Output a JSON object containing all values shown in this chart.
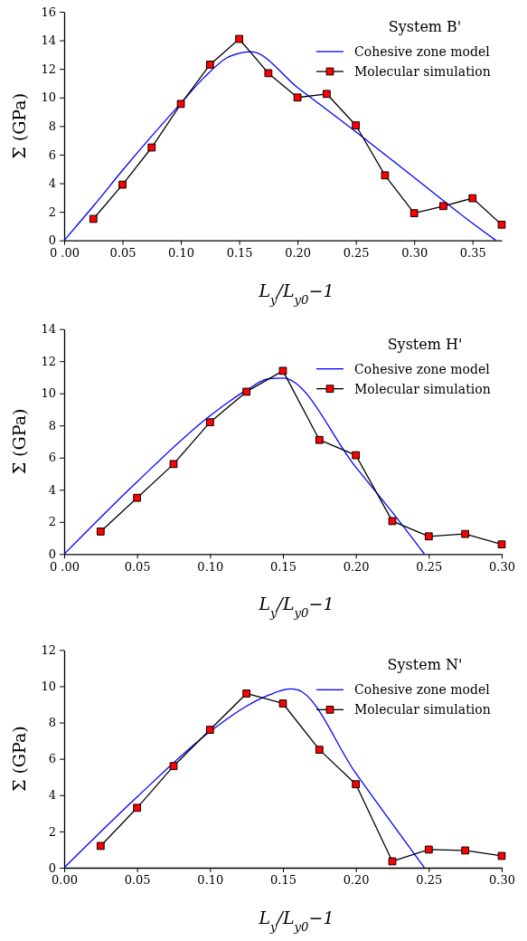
{
  "chart_data": [
    {
      "type": "line",
      "legend_title": "System B'",
      "xlabel": "L$_{y}$/L$_{y0}$−1",
      "ylabel": "Σ (GPa)",
      "xlim": [
        0,
        0.375
      ],
      "ylim": [
        0,
        16
      ],
      "xticks": [
        {
          "value": 0,
          "label": "0 .00"
        },
        {
          "value": 0.05,
          "label": "0.05"
        },
        {
          "value": 0.1,
          "label": "0.10"
        },
        {
          "value": 0.15,
          "label": "0.15"
        },
        {
          "value": 0.2,
          "label": "0.20"
        },
        {
          "value": 0.25,
          "label": "0.25"
        },
        {
          "value": 0.3,
          "label": "0.30"
        },
        {
          "value": 0.35,
          "label": "0.35"
        }
      ],
      "yticks": [
        0,
        2,
        4,
        6,
        8,
        10,
        12,
        14,
        16
      ],
      "legend": "top right",
      "grid": false,
      "series": [
        {
          "name": "Cohesive zone model",
          "color": "#0000ff",
          "marker": "none",
          "x": [
            0,
            0.025,
            0.05,
            0.075,
            0.1,
            0.12,
            0.14,
            0.15,
            0.16,
            0.2,
            0.25,
            0.3,
            0.35,
            0.37
          ],
          "values": [
            0,
            2.4,
            4.9,
            7.3,
            9.6,
            11.4,
            12.8,
            13.1,
            13.2,
            10.7,
            7.6,
            4.4,
            1.2,
            0
          ]
        },
        {
          "name": "Molecular simulation",
          "color": "#ff0000",
          "marker": "square",
          "x": [
            0.025,
            0.05,
            0.075,
            0.1,
            0.125,
            0.15,
            0.175,
            0.2,
            0.225,
            0.25,
            0.275,
            0.3,
            0.325,
            0.35,
            0.375
          ],
          "values": [
            1.5,
            3.9,
            6.5,
            9.55,
            12.3,
            14.1,
            11.7,
            10.0,
            10.25,
            8.05,
            4.55,
            1.9,
            2.4,
            2.95,
            1.1
          ]
        }
      ]
    },
    {
      "type": "line",
      "legend_title": "System H'",
      "xlabel": "L$_{y}$/L$_{y0}$−1",
      "ylabel": "Σ (GPa)",
      "xlim": [
        0,
        0.3
      ],
      "ylim": [
        0,
        14
      ],
      "xticks": [
        {
          "value": 0,
          "label": "0 .00"
        },
        {
          "value": 0.05,
          "label": "0.05"
        },
        {
          "value": 0.1,
          "label": "0.10"
        },
        {
          "value": 0.15,
          "label": "0.15"
        },
        {
          "value": 0.2,
          "label": "0.20"
        },
        {
          "value": 0.25,
          "label": "0.25"
        },
        {
          "value": 0.3,
          "label": "0.30"
        }
      ],
      "yticks": [
        0,
        2,
        4,
        6,
        8,
        10,
        12,
        14
      ],
      "legend": "top right",
      "grid": false,
      "series": [
        {
          "name": "Cohesive zone model",
          "color": "#0000ff",
          "marker": "none",
          "x": [
            0,
            0.05,
            0.1,
            0.125,
            0.14,
            0.15,
            0.2,
            0.225,
            0.247
          ],
          "values": [
            0,
            4.5,
            8.6,
            10.2,
            10.9,
            10.95,
            5.4,
            2.6,
            0
          ]
        },
        {
          "name": "Molecular simulation",
          "color": "#ff0000",
          "marker": "square",
          "x": [
            0.025,
            0.05,
            0.075,
            0.1,
            0.125,
            0.15,
            0.175,
            0.2,
            0.225,
            0.25,
            0.275,
            0.3
          ],
          "values": [
            1.4,
            3.5,
            5.6,
            8.2,
            10.1,
            11.4,
            7.1,
            6.15,
            2.05,
            1.1,
            1.25,
            0.6
          ]
        }
      ]
    },
    {
      "type": "line",
      "legend_title": "System N'",
      "xlabel": "L$_{y}$/L$_{y0}$−1",
      "ylabel": "Σ (GPa)",
      "xlim": [
        0,
        0.3
      ],
      "ylim": [
        0,
        12
      ],
      "xticks": [
        {
          "value": 0,
          "label": "0.00"
        },
        {
          "value": 0.05,
          "label": "0.05"
        },
        {
          "value": 0.1,
          "label": "0.10"
        },
        {
          "value": 0.15,
          "label": "0.15"
        },
        {
          "value": 0.2,
          "label": "0.20"
        },
        {
          "value": 0.25,
          "label": "0.25"
        },
        {
          "value": 0.3,
          "label": "0.30"
        }
      ],
      "yticks": [
        0,
        2,
        4,
        6,
        8,
        10,
        12
      ],
      "legend": "top right",
      "grid": false,
      "series": [
        {
          "name": "Cohesive zone model",
          "color": "#0000ff",
          "marker": "none",
          "x": [
            0,
            0.05,
            0.1,
            0.125,
            0.14,
            0.155,
            0.16,
            0.2,
            0.247
          ],
          "values": [
            0,
            3.9,
            7.5,
            8.9,
            9.5,
            9.85,
            9.8,
            5.2,
            0
          ]
        },
        {
          "name": "Molecular simulation",
          "color": "#ff0000",
          "marker": "square",
          "x": [
            0.025,
            0.05,
            0.075,
            0.1,
            0.125,
            0.15,
            0.175,
            0.2,
            0.225,
            0.25,
            0.275,
            0.3
          ],
          "values": [
            1.2,
            3.3,
            5.6,
            7.6,
            9.6,
            9.05,
            6.5,
            4.6,
            0.35,
            1.0,
            0.95,
            0.65
          ]
        }
      ]
    }
  ]
}
